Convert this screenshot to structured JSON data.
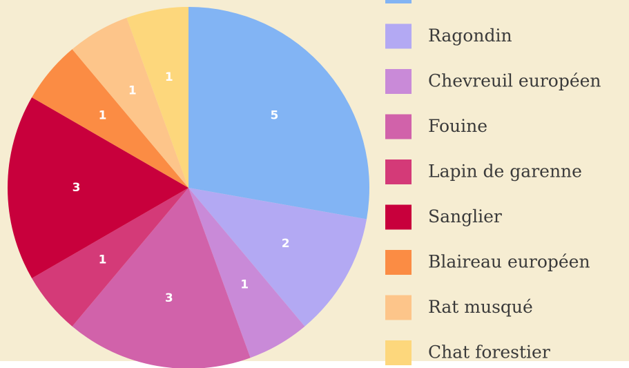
{
  "chart_data": {
    "type": "pie",
    "categories": [
      null,
      "Ragondin",
      "Chevreuil européen",
      "Fouine",
      "Lapin de garenne",
      "Sanglier",
      "Blaireau européen",
      "Rat musqué",
      "Chat forestier"
    ],
    "values": [
      5,
      2,
      1,
      3,
      1,
      3,
      1,
      1,
      1
    ],
    "colors": [
      "#82b4f4",
      "#b3a9f3",
      "#c98ad8",
      "#d162aa",
      "#d43a78",
      "#c8003c",
      "#fb8c44",
      "#fdc58a",
      "#fdd77c"
    ]
  }
}
